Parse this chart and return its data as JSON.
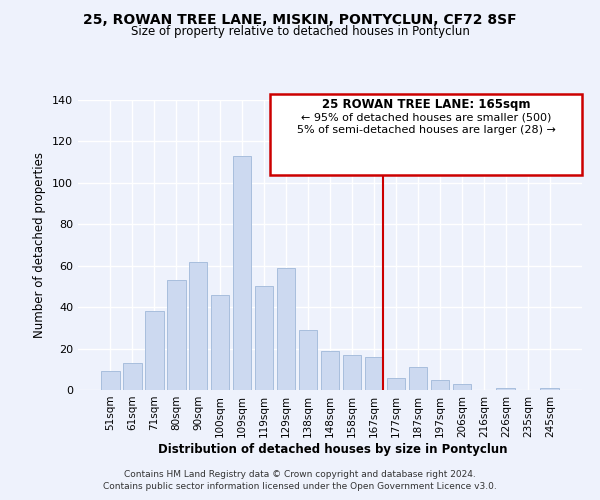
{
  "title": "25, ROWAN TREE LANE, MISKIN, PONTYCLUN, CF72 8SF",
  "subtitle": "Size of property relative to detached houses in Pontyclun",
  "xlabel": "Distribution of detached houses by size in Pontyclun",
  "ylabel": "Number of detached properties",
  "bar_labels": [
    "51sqm",
    "61sqm",
    "71sqm",
    "80sqm",
    "90sqm",
    "100sqm",
    "109sqm",
    "119sqm",
    "129sqm",
    "138sqm",
    "148sqm",
    "158sqm",
    "167sqm",
    "177sqm",
    "187sqm",
    "197sqm",
    "206sqm",
    "216sqm",
    "226sqm",
    "235sqm",
    "245sqm"
  ],
  "bar_values": [
    9,
    13,
    38,
    53,
    62,
    46,
    113,
    50,
    59,
    29,
    19,
    17,
    16,
    6,
    11,
    5,
    3,
    0,
    1,
    0,
    1
  ],
  "bar_color": "#ccd9f0",
  "bar_edge_color": "#a8bedd",
  "vline_index": 12,
  "vline_color": "#cc0000",
  "ylim": [
    0,
    140
  ],
  "yticks": [
    0,
    20,
    40,
    60,
    80,
    100,
    120,
    140
  ],
  "annotation_title": "25 ROWAN TREE LANE: 165sqm",
  "annotation_line1": "← 95% of detached houses are smaller (500)",
  "annotation_line2": "5% of semi-detached houses are larger (28) →",
  "annotation_box_color": "#ffffff",
  "annotation_box_edge": "#cc0000",
  "footer_line1": "Contains HM Land Registry data © Crown copyright and database right 2024.",
  "footer_line2": "Contains public sector information licensed under the Open Government Licence v3.0.",
  "background_color": "#eef2fc",
  "grid_color": "#ffffff"
}
